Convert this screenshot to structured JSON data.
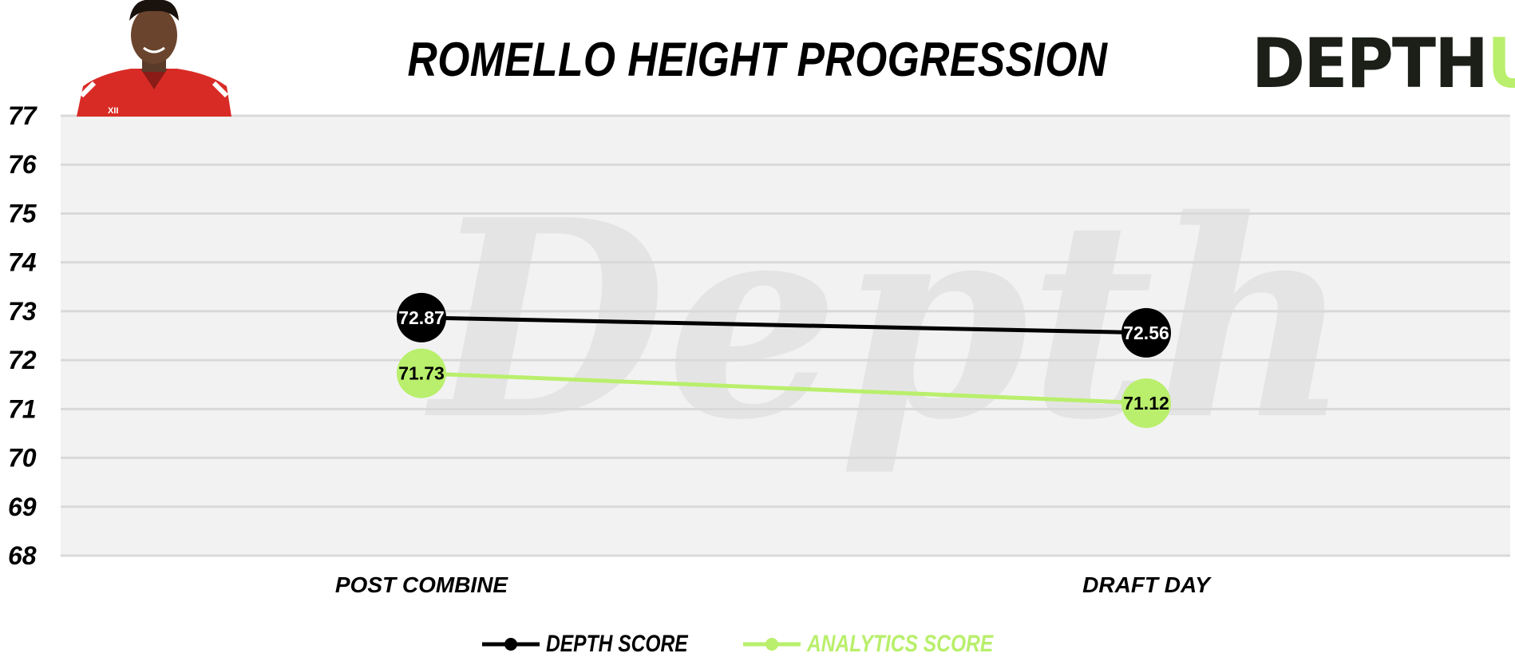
{
  "title": "ROMELLO HEIGHT PROGRESSION",
  "logo": {
    "main": "DEPTH",
    "accent": "U"
  },
  "watermark": "Depth",
  "colors": {
    "depth": "#000000",
    "analytics": "#b9ef6c",
    "plot_bg": "#f2f2f2",
    "grid": "#d9d9d9"
  },
  "legend": {
    "depth_label": "DEPTH SCORE",
    "analytics_label": "ANALYTICS SCORE"
  },
  "chart_data": {
    "type": "line",
    "title": "ROMELLO HEIGHT PROGRESSION",
    "categories": [
      "POST COMBINE",
      "DRAFT DAY"
    ],
    "series": [
      {
        "name": "DEPTH SCORE",
        "values": [
          72.87,
          72.56
        ],
        "labels": [
          "72.87",
          "72.56"
        ]
      },
      {
        "name": "ANALYTICS SCORE",
        "values": [
          71.73,
          71.12
        ],
        "labels": [
          "71.73",
          "71.12"
        ]
      }
    ],
    "yticks": [
      "68",
      "69",
      "70",
      "71",
      "72",
      "73",
      "74",
      "75",
      "76",
      "77"
    ],
    "ylim": [
      68,
      77
    ],
    "grid": true,
    "legend_position": "bottom"
  }
}
